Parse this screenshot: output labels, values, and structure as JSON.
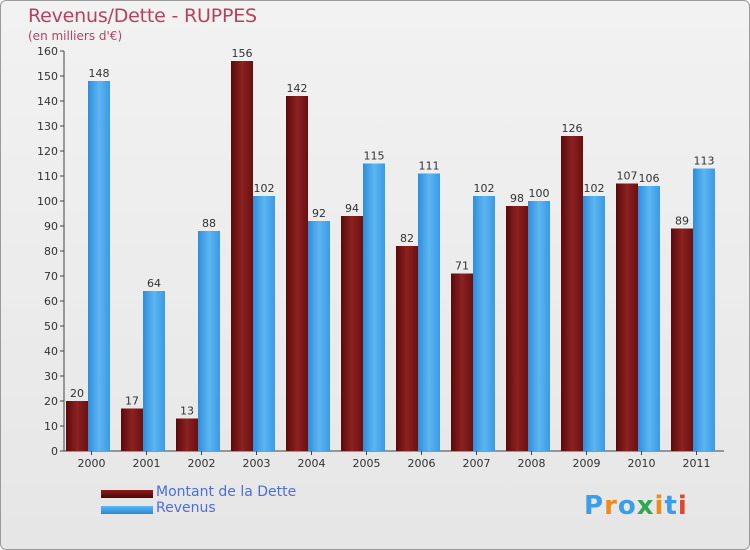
{
  "header": {
    "title": "Revenus/Dette - RUPPES",
    "subtitle": "(en milliers d'€)"
  },
  "legend": {
    "debt_label": "Montant de la Dette",
    "revenue_label": "Revenus"
  },
  "logo": {
    "text": "Proxiti"
  },
  "colors": {
    "debt": "#7a1515",
    "revenue": "#3d9ee8",
    "title": "#b5415f",
    "legend_text": "#4a6ee0",
    "axis_text": "#333333"
  },
  "chart_data": {
    "type": "bar",
    "title": "Revenus/Dette - RUPPES",
    "ylabel": "(en milliers d'€)",
    "xlabel": "",
    "categories": [
      "2000",
      "2001",
      "2002",
      "2003",
      "2004",
      "2005",
      "2006",
      "2007",
      "2008",
      "2009",
      "2010",
      "2011"
    ],
    "series": [
      {
        "name": "Montant de la Dette",
        "values": [
          20,
          17,
          13,
          156,
          142,
          94,
          82,
          71,
          98,
          126,
          107,
          89
        ]
      },
      {
        "name": "Revenus",
        "values": [
          148,
          64,
          88,
          102,
          92,
          115,
          111,
          102,
          100,
          102,
          106,
          113
        ]
      }
    ],
    "ylim": [
      0,
      160
    ],
    "yticks": [
      0,
      10,
      20,
      30,
      40,
      50,
      60,
      70,
      80,
      90,
      100,
      110,
      120,
      130,
      140,
      150,
      160
    ],
    "grid": false,
    "legend_position": "bottom-left"
  }
}
